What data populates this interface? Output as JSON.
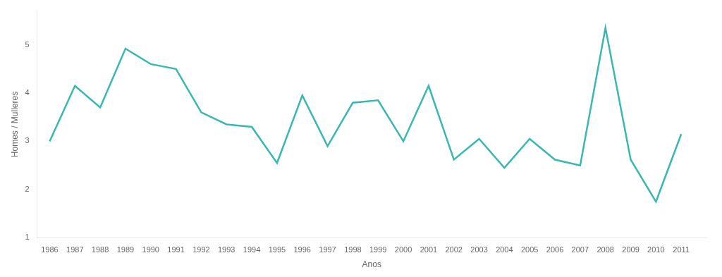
{
  "chart_data": {
    "type": "line",
    "x": [
      1986,
      1987,
      1988,
      1989,
      1990,
      1991,
      1992,
      1993,
      1994,
      1995,
      1996,
      1997,
      1998,
      1999,
      2000,
      2001,
      2002,
      2003,
      2004,
      2005,
      2006,
      2007,
      2008,
      2009,
      2010,
      2011
    ],
    "values": [
      3.0,
      4.15,
      3.7,
      4.92,
      4.6,
      4.5,
      3.6,
      3.35,
      3.3,
      2.55,
      3.95,
      2.9,
      3.8,
      3.85,
      3.0,
      4.15,
      2.62,
      3.05,
      2.45,
      3.05,
      2.62,
      2.5,
      5.35,
      2.62,
      1.75,
      3.15
    ],
    "color": "#3ab8b0",
    "x_label": "Anos",
    "y_label": "Homes / Mulleres",
    "xlim": [
      1985.5,
      2012.0
    ],
    "xticks": [
      1986,
      1987,
      1988,
      1989,
      1990,
      1991,
      1992,
      1993,
      1994,
      1995,
      1996,
      1997,
      1998,
      1999,
      2000,
      2001,
      2002,
      2003,
      2004,
      2005,
      2006,
      2007,
      2008,
      2009,
      2010,
      2011
    ],
    "ylim": [
      1,
      5.7
    ],
    "yticks": [
      1,
      2,
      3,
      4,
      5
    ],
    "grid": false
  }
}
